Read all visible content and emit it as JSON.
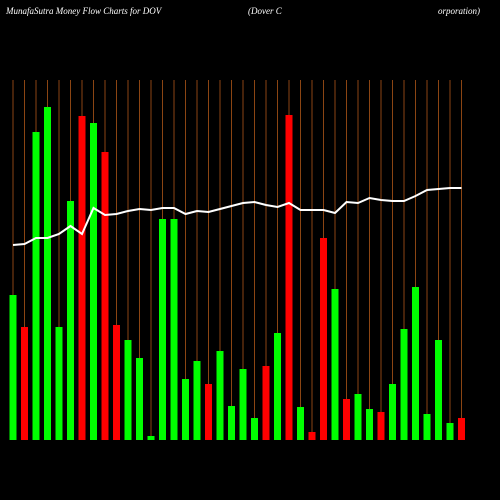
{
  "chart_data": {
    "type": "bar",
    "title": "MunafaSutra  Money Flow  Charts for DOV",
    "subtitle": [
      "(Dover C",
      "orporation)"
    ],
    "values": [
      145,
      113,
      308,
      333,
      113,
      239,
      324,
      317,
      288,
      115,
      100,
      82,
      4,
      221,
      221,
      61,
      79,
      56,
      89,
      34,
      71,
      22,
      74,
      107,
      325,
      33,
      8,
      202,
      151,
      41,
      46,
      31,
      28,
      56,
      111,
      153,
      26,
      100,
      17,
      22
    ],
    "colors": [
      "#00ff00",
      "#ff0000",
      "#00ff00",
      "#00ff00",
      "#00ff00",
      "#00ff00",
      "#ff0000",
      "#00ff00",
      "#ff0000",
      "#ff0000",
      "#00ff00",
      "#00ff00",
      "#00ff00",
      "#00ff00",
      "#00ff00",
      "#00ff00",
      "#00ff00",
      "#ff0000",
      "#00ff00",
      "#00ff00",
      "#00ff00",
      "#00ff00",
      "#ff0000",
      "#00ff00",
      "#ff0000",
      "#00ff00",
      "#ff0000",
      "#ff0000",
      "#00ff00",
      "#ff0000",
      "#00ff00",
      "#00ff00",
      "#ff0000",
      "#00ff00",
      "#00ff00",
      "#00ff00",
      "#00ff00",
      "#00ff00",
      "#00ff00",
      "#ff0000"
    ],
    "line_values": [
      195,
      196,
      202,
      202,
      206,
      214,
      206,
      232,
      225,
      226,
      229,
      231,
      230,
      232,
      232,
      226,
      229,
      228,
      231,
      234,
      237,
      238,
      235,
      233,
      237,
      230,
      230,
      230,
      227,
      238,
      237,
      242,
      240,
      239,
      239,
      244,
      250,
      251,
      252,
      252
    ],
    "line_color": "#ffffff",
    "grid_color": "#8b4513",
    "ylim": [
      0,
      360
    ]
  }
}
